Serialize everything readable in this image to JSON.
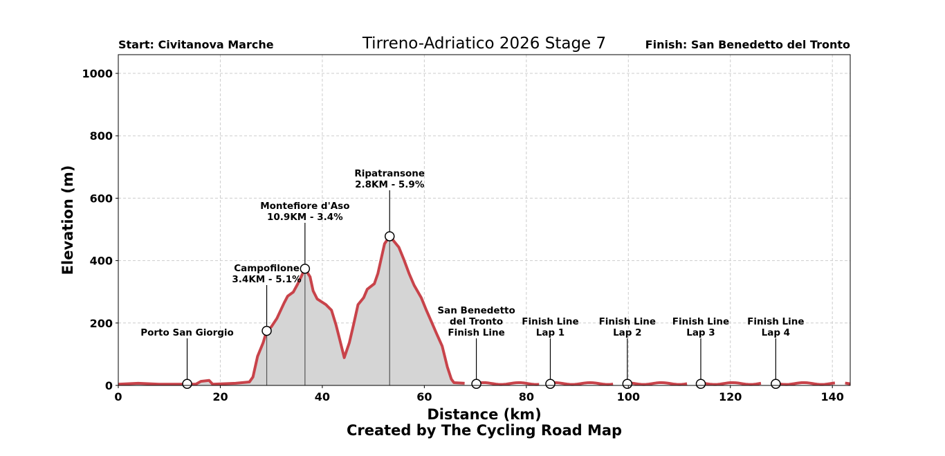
{
  "chart_data": {
    "type": "area",
    "title": "Tirreno-Adriatico 2026 Stage 7",
    "start_label": "Start: Civitanova Marche",
    "finish_label": "Finish: San Benedetto del Tronto",
    "xlabel": "Distance (km)",
    "ylabel": "Elevation (m)",
    "credit": "Created by The Cycling Road Map",
    "xlim": [
      0,
      143.5
    ],
    "ylim": [
      0,
      1060
    ],
    "xticks": [
      0,
      20,
      40,
      60,
      80,
      100,
      120,
      140
    ],
    "yticks": [
      0,
      200,
      400,
      600,
      800,
      1000
    ],
    "grid": true,
    "colors": {
      "line": "#c8434a",
      "fill": "#d5d5d5",
      "grid": "#cccccc"
    },
    "profile": [
      [
        0,
        4
      ],
      [
        3.9,
        7
      ],
      [
        8,
        4
      ],
      [
        12.4,
        4
      ],
      [
        15.2,
        4
      ],
      [
        16.2,
        13
      ],
      [
        17.8,
        16
      ],
      [
        18.5,
        4
      ],
      [
        23,
        7
      ],
      [
        25.7,
        11
      ],
      [
        26.4,
        27
      ],
      [
        27.3,
        93
      ],
      [
        28.4,
        137
      ],
      [
        29.1,
        175
      ],
      [
        30,
        188
      ],
      [
        31.1,
        215
      ],
      [
        32.5,
        264
      ],
      [
        33.2,
        286
      ],
      [
        34.3,
        299
      ],
      [
        35.2,
        326
      ],
      [
        36.6,
        374
      ],
      [
        37.6,
        348
      ],
      [
        38.2,
        303
      ],
      [
        39,
        277
      ],
      [
        40.7,
        259
      ],
      [
        41.8,
        241
      ],
      [
        42.7,
        193
      ],
      [
        43.4,
        148
      ],
      [
        44.3,
        89
      ],
      [
        45.3,
        137
      ],
      [
        46.1,
        193
      ],
      [
        47,
        259
      ],
      [
        48.1,
        281
      ],
      [
        48.8,
        308
      ],
      [
        50.2,
        326
      ],
      [
        50.9,
        359
      ],
      [
        51.5,
        403
      ],
      [
        52.2,
        454
      ],
      [
        53.2,
        478
      ],
      [
        54,
        463
      ],
      [
        55,
        443
      ],
      [
        56,
        403
      ],
      [
        57,
        359
      ],
      [
        58,
        321
      ],
      [
        59.4,
        281
      ],
      [
        60.4,
        241
      ],
      [
        61.4,
        204
      ],
      [
        62.4,
        166
      ],
      [
        63.5,
        126
      ],
      [
        64.5,
        60
      ],
      [
        65.3,
        20
      ],
      [
        65.8,
        9
      ],
      [
        67.9,
        7
      ]
    ],
    "flat_segments": [
      [
        69.5,
        82.5
      ],
      [
        84,
        97
      ],
      [
        99,
        111.5
      ],
      [
        113.5,
        126
      ],
      [
        128,
        140.5
      ],
      [
        142.5,
        143.5
      ]
    ],
    "markers": [
      {
        "name": "Porto San Giorgio",
        "lines": [
          "Porto San Giorgio"
        ],
        "km": 13.5,
        "elev": 5,
        "climb": false
      },
      {
        "name": "Campofilone",
        "lines": [
          "Campofilone",
          "3.4KM - 5.1%"
        ],
        "km": 29.1,
        "elev": 175,
        "climb": true
      },
      {
        "name": "Montefiore d'Aso",
        "lines": [
          "Montefiore d'Aso",
          "10.9KM - 3.4%"
        ],
        "km": 36.6,
        "elev": 374,
        "climb": true
      },
      {
        "name": "Ripatransone",
        "lines": [
          "Ripatransone",
          "2.8KM - 5.9%"
        ],
        "km": 53.2,
        "elev": 478,
        "climb": true
      },
      {
        "name": "San Benedetto del Tronto Finish Line",
        "lines": [
          "San Benedetto",
          "del Tronto",
          "Finish Line"
        ],
        "km": 70.2,
        "elev": 5,
        "climb": false
      },
      {
        "name": "Finish Line Lap 1",
        "lines": [
          "Finish Line",
          "Lap 1"
        ],
        "km": 84.7,
        "elev": 5,
        "climb": false
      },
      {
        "name": "Finish Line Lap 2",
        "lines": [
          "Finish Line",
          "Lap 2"
        ],
        "km": 99.8,
        "elev": 5,
        "climb": false
      },
      {
        "name": "Finish Line Lap 3",
        "lines": [
          "Finish Line",
          "Lap 3"
        ],
        "km": 114.2,
        "elev": 5,
        "climb": false
      },
      {
        "name": "Finish Line Lap 4",
        "lines": [
          "Finish Line",
          "Lap 4"
        ],
        "km": 128.9,
        "elev": 5,
        "climb": false
      }
    ]
  }
}
